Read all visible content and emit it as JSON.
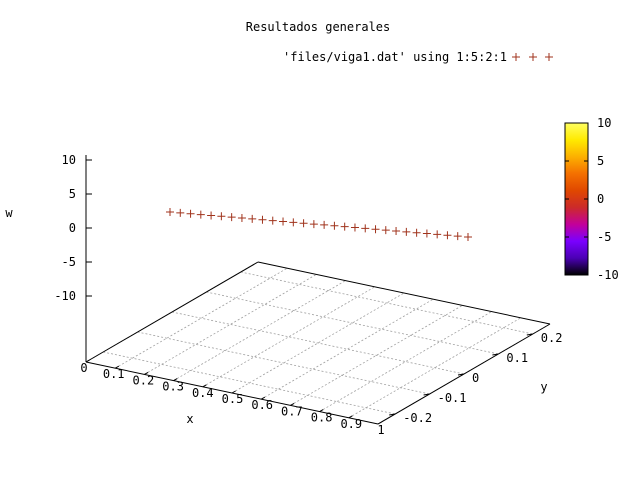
{
  "chart_data": {
    "type": "scatter",
    "title": "Resultados generales",
    "xlabel": "x",
    "ylabel": "y",
    "zlabel": "w",
    "legend_label": "'files/viga1.dat' using 1:5:2:1",
    "marker": "+",
    "marker_color": "#a0331c",
    "xlim": [
      0,
      1
    ],
    "ylim": [
      -0.25,
      0.25
    ],
    "zlim": [
      -10,
      10
    ],
    "x_ticks": [
      "0",
      "0.1",
      "0.2",
      "0.3",
      "0.4",
      "0.5",
      "0.6",
      "0.7",
      "0.8",
      "0.9",
      "1"
    ],
    "y_ticks": [
      "-0.2",
      "-0.1",
      "0",
      "0.1",
      "0.2"
    ],
    "z_ticks": [
      "10",
      "5",
      "0",
      "-5",
      "-10"
    ],
    "colorbar": {
      "ticks": [
        "10",
        "5",
        "0",
        "-5",
        "-10"
      ],
      "range": [
        -10,
        10
      ],
      "palette": [
        "#000000",
        "#4b00b4",
        "#7a00ff",
        "#c3009a",
        "#cc2a2a",
        "#e04800",
        "#f47000",
        "#fcb000",
        "#ffea00",
        "#ffff60"
      ]
    },
    "grid": true,
    "legend_position": "top-right",
    "series": [
      {
        "x": [
          0.0,
          0.0345,
          0.069,
          0.1034,
          0.1379,
          0.1724,
          0.2069,
          0.2414,
          0.2759,
          0.3103,
          0.3448,
          0.3793,
          0.4138,
          0.4483,
          0.4828,
          0.5172,
          0.5517,
          0.5862,
          0.6207,
          0.6552,
          0.6897,
          0.7241,
          0.7586,
          0.7931,
          0.8276,
          0.8621,
          0.8966,
          0.931,
          0.9655,
          1.0
        ],
        "y": [
          0,
          0,
          0,
          0,
          0,
          0,
          0,
          0,
          0,
          0,
          0,
          0,
          0,
          0,
          0,
          0,
          0,
          0,
          0,
          0,
          0,
          0,
          0,
          0,
          0,
          0,
          0,
          0,
          0,
          0
        ],
        "w": [
          0,
          -0.02,
          -0.05,
          -0.08,
          -0.12,
          -0.16,
          -0.21,
          -0.27,
          -0.33,
          -0.4,
          -0.47,
          -0.55,
          -0.63,
          -0.71,
          -0.8,
          -0.89,
          -0.98,
          -1.08,
          -1.18,
          -1.28,
          -1.38,
          -1.48,
          -1.59,
          -1.69,
          -1.8,
          -1.91,
          -2.02,
          -2.13,
          -2.24,
          -2.35
        ]
      }
    ]
  }
}
